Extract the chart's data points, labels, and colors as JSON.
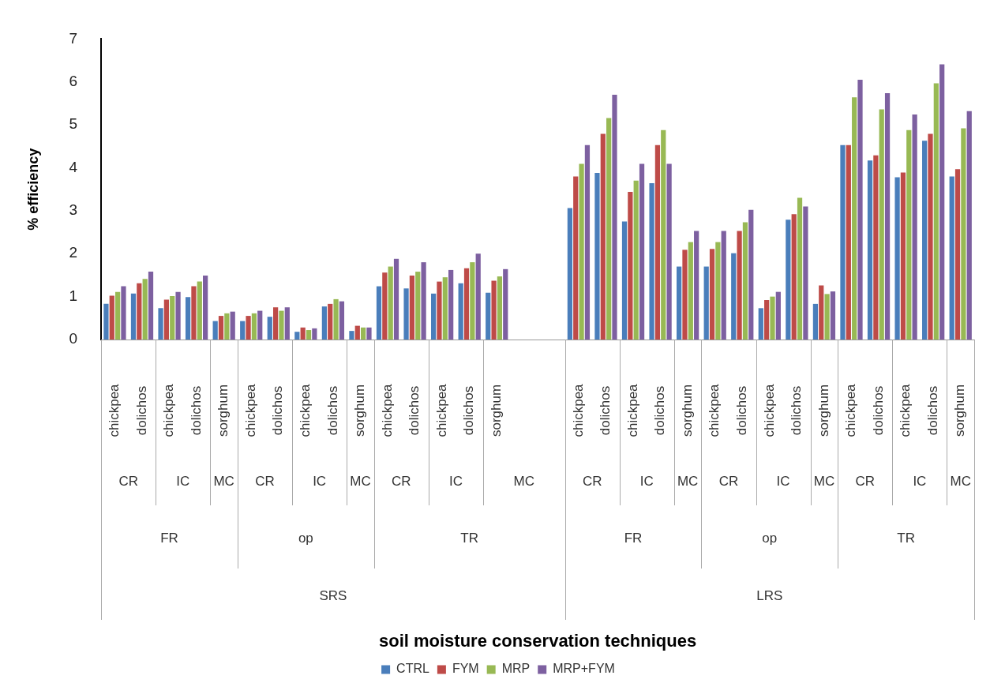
{
  "chart_data": {
    "type": "bar",
    "ylabel": "% efficiency",
    "categories": [
      "chickpea",
      "dolichos",
      "chickpea",
      "dolichos",
      "sorghum",
      "chickpea",
      "dolichos",
      "chickpea",
      "dolichos",
      "sorghum",
      "chickpea",
      "dolichos",
      "chickpea",
      "dolichos",
      "sorghum",
      null,
      null,
      "chickpea",
      "dolichos",
      "chickpea",
      "dolichos",
      "sorghum",
      "chickpea",
      "dolichos",
      "chickpea",
      "dolichos",
      "sorghum",
      "chickpea",
      "dolichos",
      "chickpea",
      "dolichos",
      "sorghum"
    ],
    "series": [
      {
        "name": "CTRL",
        "color": "#4a7ebb",
        "values": [
          0.83,
          1.07,
          0.73,
          0.99,
          0.43,
          0.43,
          0.53,
          0.18,
          0.77,
          0.2,
          1.24,
          1.19,
          1.07,
          1.31,
          1.09,
          null,
          null,
          3.06,
          3.88,
          2.75,
          3.64,
          1.7,
          1.7,
          2.01,
          0.73,
          2.79,
          0.83,
          4.53,
          4.17,
          3.78,
          4.63,
          3.8
        ]
      },
      {
        "name": "FYM",
        "color": "#be4b48",
        "values": [
          1.02,
          1.31,
          0.93,
          1.24,
          0.55,
          0.55,
          0.75,
          0.28,
          0.83,
          0.32,
          1.56,
          1.49,
          1.35,
          1.66,
          1.37,
          null,
          null,
          3.8,
          4.79,
          3.44,
          4.53,
          2.09,
          2.11,
          2.53,
          0.92,
          2.92,
          1.26,
          4.53,
          4.29,
          3.89,
          4.79,
          3.97
        ]
      },
      {
        "name": "MRP",
        "color": "#98b954",
        "values": [
          1.11,
          1.41,
          1.01,
          1.35,
          0.61,
          0.61,
          0.67,
          0.22,
          0.94,
          0.28,
          1.7,
          1.58,
          1.45,
          1.8,
          1.47,
          null,
          null,
          4.09,
          5.16,
          3.7,
          4.88,
          2.27,
          2.27,
          2.73,
          1.0,
          3.3,
          1.06,
          5.64,
          5.36,
          4.88,
          5.97,
          4.92
        ]
      },
      {
        "name": "MRP+FYM",
        "color": "#7d60a0",
        "values": [
          1.24,
          1.58,
          1.11,
          1.49,
          0.65,
          0.67,
          0.75,
          0.26,
          0.89,
          0.28,
          1.88,
          1.8,
          1.62,
          2.0,
          1.64,
          null,
          null,
          4.53,
          5.7,
          4.09,
          4.09,
          2.53,
          2.53,
          3.02,
          1.11,
          3.1,
          1.12,
          6.05,
          5.74,
          5.24,
          6.41,
          5.32
        ]
      }
    ],
    "ylim": [
      0,
      7
    ],
    "yticks": [
      0,
      1,
      2,
      3,
      4,
      5,
      6,
      7
    ],
    "grid": false,
    "legend": "bottom",
    "annotations": [
      "CR",
      "IC",
      "MC",
      "CR",
      "IC",
      "MC",
      "CR",
      "IC",
      "MC",
      "CR",
      "IC",
      "MC",
      "CR",
      "IC",
      "MC",
      "CR",
      "IC",
      "MC",
      "FR",
      "op",
      "TR",
      "FR",
      "op",
      "TR",
      "SRS",
      "LRS",
      "soil moisture conservation techniques"
    ]
  }
}
